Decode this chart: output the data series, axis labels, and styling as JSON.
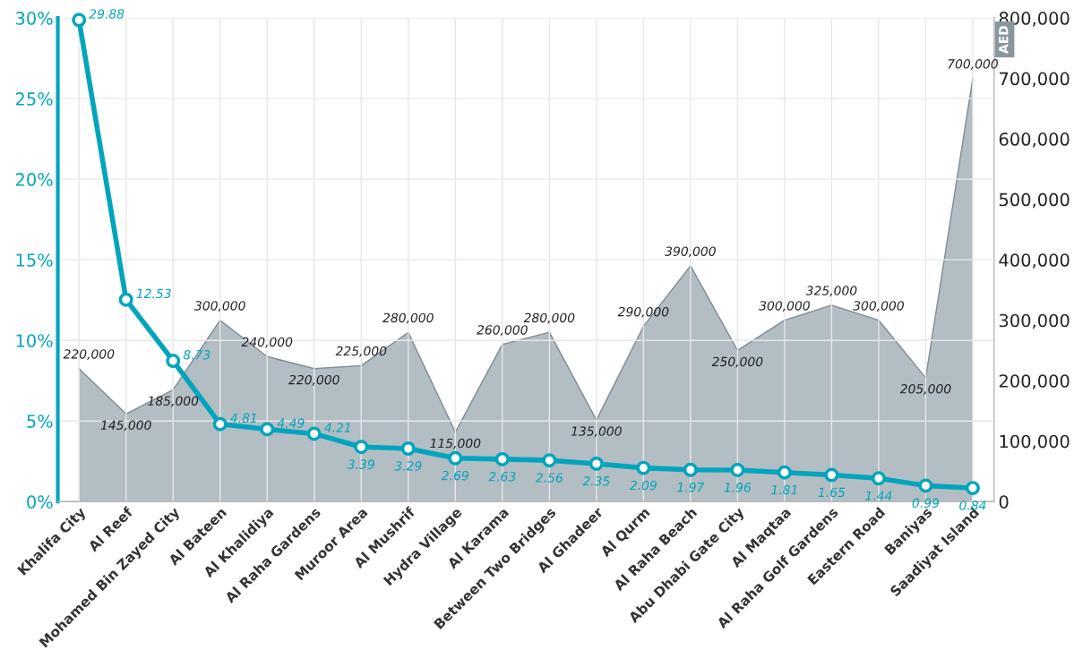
{
  "chart_data": {
    "type": "line",
    "categories": [
      "Khalifa City",
      "Al Reef",
      "Mohamed Bin Zayed City",
      "Al Bateen",
      "Al Khalidiya",
      "Al Raha Gardens",
      "Muroor Area",
      "Al Mushrif",
      "Hydra Village",
      "Al Karama",
      "Between Two Bridges",
      "Al Ghadeer",
      "Al Qurm",
      "Al Raha Beach",
      "Abu Dhabi Gate City",
      "Al Maqtaa",
      "Al Raha Golf Gardens",
      "Eastern Road",
      "Baniyas",
      "Saadiyat Island"
    ],
    "series": [
      {
        "type": "area",
        "axis": "y2",
        "color": "#9aa7b0",
        "values": [
          220000,
          145000,
          185000,
          300000,
          240000,
          220000,
          225000,
          280000,
          115000,
          260000,
          280000,
          135000,
          290000,
          390000,
          250000,
          300000,
          325000,
          300000,
          205000,
          700000
        ],
        "value_labels": [
          "220,000",
          "145,000",
          "185,000",
          "300,000",
          "240,000",
          "220,000",
          "225,000",
          "280,000",
          "115,000",
          "260,000",
          "280,000",
          "135,000",
          "290,000",
          "390,000",
          "250,000",
          "300,000",
          "325,000",
          "300,000",
          "205,000",
          "700,000"
        ]
      },
      {
        "color": "#00a5bd",
        "marker": "circle",
        "values": [
          29.88,
          12.53,
          8.73,
          4.81,
          4.49,
          4.21,
          3.39,
          3.29,
          2.69,
          2.63,
          2.56,
          2.35,
          2.09,
          1.97,
          1.96,
          1.81,
          1.65,
          1.44,
          0.99,
          0.84
        ],
        "value_labels": [
          "29.88",
          "12.53",
          "8.73",
          "4.81",
          "4.49",
          "4.21",
          "3.39",
          "3.29",
          "2.69",
          "2.63",
          "2.56",
          "2.35",
          "2.09",
          "1.97",
          "1.96",
          "1.81",
          "1.65",
          "1.44",
          "0.99",
          "0.84"
        ]
      }
    ],
    "ylim": [
      0,
      30
    ],
    "yticks": [
      {
        "value": 0,
        "label": "0%"
      },
      {
        "value": 5,
        "label": "5%"
      },
      {
        "value": 10,
        "label": "10%"
      },
      {
        "value": 15,
        "label": "15%"
      },
      {
        "value": 20,
        "label": "20%"
      },
      {
        "value": 25,
        "label": "25%"
      },
      {
        "value": 30,
        "label": "30%"
      }
    ],
    "y2lim": [
      0,
      800000
    ],
    "y2ticks": [
      {
        "value": 0,
        "label": "0"
      },
      {
        "value": 100000,
        "label": "100,000"
      },
      {
        "value": 200000,
        "label": "200,000"
      },
      {
        "value": 300000,
        "label": "300,000"
      },
      {
        "value": 400000,
        "label": "400,000"
      },
      {
        "value": 500000,
        "label": "500,000"
      },
      {
        "value": 600000,
        "label": "600,000"
      },
      {
        "value": 700000,
        "label": "700,000"
      },
      {
        "value": 800000,
        "label": "800,000"
      }
    ],
    "y2label": "AED",
    "grid": true
  }
}
